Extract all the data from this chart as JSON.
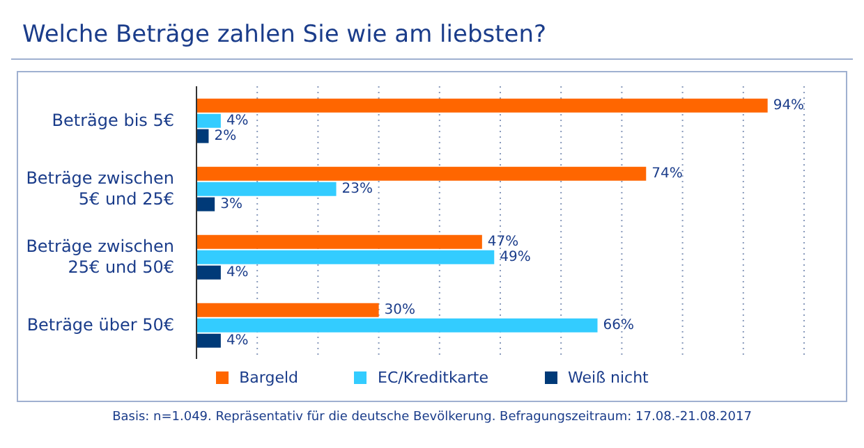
{
  "chart_data": {
    "type": "bar",
    "orientation": "horizontal",
    "title": "Welche Beträge zahlen Sie wie am liebsten?",
    "categories": [
      "Beträge bis 5€",
      "Beträge zwischen 5€ und 25€",
      "Beträge zwischen 25€ und 50€",
      "Beträge über 50€"
    ],
    "series": [
      {
        "name": "Bargeld",
        "color": "#ff6600",
        "values": [
          94,
          74,
          47,
          30
        ],
        "value_labels": [
          "94%",
          "74%",
          "47%",
          "30%"
        ]
      },
      {
        "name": "EC/Kreditkarte",
        "color": "#33ccff",
        "values": [
          4,
          23,
          49,
          66
        ],
        "value_labels": [
          "4%",
          "23%",
          "49%",
          "66%"
        ]
      },
      {
        "name": "Weiß nicht",
        "color": "#003a78",
        "values": [
          2,
          3,
          4,
          4
        ],
        "value_labels": [
          "2%",
          "3%",
          "4%",
          "4%"
        ]
      }
    ],
    "xlim": [
      0,
      100
    ],
    "xticks": [
      {
        "value": 0,
        "label": null
      },
      {
        "value": 10,
        "label": null
      },
      {
        "value": 20,
        "label": null
      },
      {
        "value": 30,
        "label": null
      },
      {
        "value": 40,
        "label": null
      },
      {
        "value": 50,
        "label": null
      },
      {
        "value": 60,
        "label": null
      },
      {
        "value": 70,
        "label": null
      },
      {
        "value": 80,
        "label": null
      },
      {
        "value": 90,
        "label": null
      },
      {
        "value": 100,
        "label": null
      }
    ],
    "tick_labels": "y",
    "grid": "x",
    "legend": "bottom",
    "annotations": [
      "Basis: n=1.049. Repräsentativ für die deutsche Bevölkerung. Befragungszeitraum: 17.08.-21.08.2017"
    ]
  }
}
